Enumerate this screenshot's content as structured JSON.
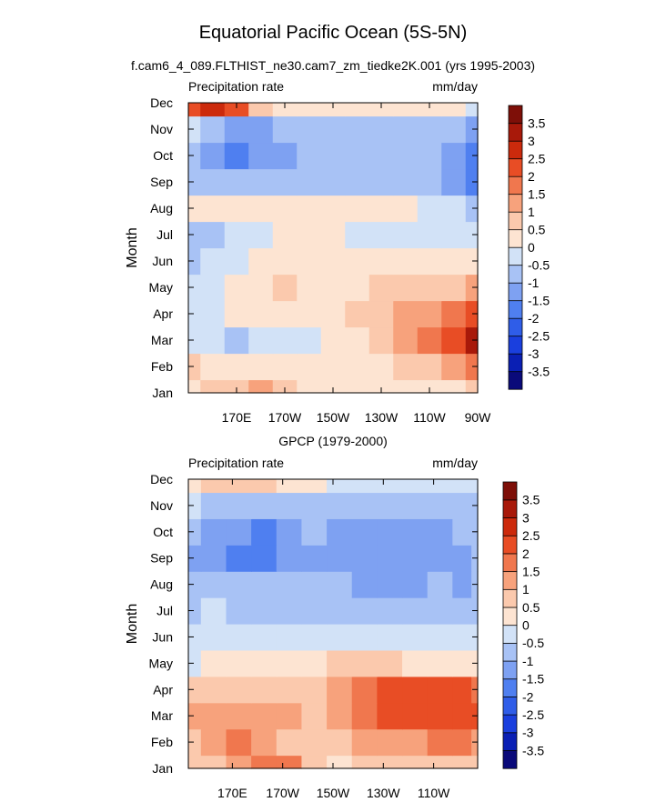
{
  "figure": {
    "title": "Equatorial Pacific Ocean (5S-5N)",
    "subtitle": "f.cam6_4_089.FLTHIST_ne30.cam7_zm_tiedke2K.001 (yrs 1995-2003)"
  },
  "chart_data": [
    {
      "type": "heatmap",
      "title": "",
      "left_label": "Precipitation rate",
      "right_label": "mm/day",
      "ylabel": "Month",
      "xlabel": "",
      "y_ticks": [
        "Jan",
        "Feb",
        "Mar",
        "Apr",
        "May",
        "Jun",
        "Jul",
        "Aug",
        "Sep",
        "Oct",
        "Nov",
        "Dec"
      ],
      "x_ticks": [
        "170E",
        "170W",
        "150W",
        "130W",
        "110W",
        "90W"
      ],
      "x_tick_lon": [
        170,
        190,
        210,
        230,
        250,
        270
      ],
      "xlim_lon": [
        150,
        270
      ],
      "grid_lon": [
        150,
        160,
        170,
        180,
        190,
        200,
        210,
        220,
        230,
        240,
        250,
        260,
        270
      ],
      "months": [
        "Jan",
        "Feb",
        "Mar",
        "Apr",
        "May",
        "Jun",
        "Jul",
        "Aug",
        "Sep",
        "Oct",
        "Nov",
        "Dec"
      ],
      "values": [
        [
          0.3,
          0.6,
          0.9,
          1.0,
          0.8,
          0.4,
          0.2,
          0.3,
          0.3,
          0.2,
          0.1,
          0.3,
          0.5
        ],
        [
          0.6,
          0.4,
          0.3,
          0.2,
          0.3,
          0.3,
          0.2,
          0.3,
          0.4,
          0.5,
          0.8,
          1.2,
          1.6
        ],
        [
          -0.4,
          -0.3,
          -0.6,
          -0.5,
          -0.4,
          -0.2,
          0.1,
          0.4,
          0.8,
          1.2,
          1.6,
          2.4,
          3.0
        ],
        [
          -0.3,
          -0.2,
          0.1,
          0.3,
          0.3,
          0.3,
          0.4,
          0.6,
          0.8,
          1.0,
          1.3,
          1.8,
          2.2
        ],
        [
          -0.4,
          -0.2,
          0.3,
          0.4,
          0.5,
          0.4,
          0.4,
          0.4,
          0.5,
          0.6,
          0.7,
          0.8,
          1.0
        ],
        [
          -0.6,
          -0.5,
          -0.3,
          0.1,
          0.3,
          0.3,
          0.2,
          0.2,
          0.2,
          0.3,
          0.3,
          0.2,
          0.2
        ],
        [
          -0.8,
          -0.9,
          -0.5,
          -0.3,
          0.2,
          0.2,
          0.1,
          -0.1,
          -0.2,
          -0.2,
          -0.3,
          -0.4,
          -0.5
        ],
        [
          0.3,
          0.4,
          0.2,
          0.2,
          0.3,
          0.4,
          0.3,
          0.3,
          0.2,
          0.1,
          -0.2,
          -0.5,
          -0.9
        ],
        [
          -0.6,
          -0.7,
          -0.8,
          -0.8,
          -0.7,
          -0.6,
          -0.6,
          -0.6,
          -0.6,
          -0.7,
          -0.9,
          -1.2,
          -1.6
        ],
        [
          -0.7,
          -1.2,
          -1.6,
          -1.5,
          -1.2,
          -0.9,
          -0.8,
          -0.7,
          -0.7,
          -0.8,
          -1.0,
          -1.2,
          -1.6
        ],
        [
          -0.5,
          -0.8,
          -1.2,
          -1.1,
          -0.9,
          -0.7,
          -0.6,
          -0.6,
          -0.6,
          -0.7,
          -0.9,
          -1.0,
          -1.2
        ],
        [
          2.2,
          2.6,
          2.0,
          0.9,
          0.4,
          0.2,
          0.1,
          0.2,
          0.3,
          0.2,
          0.1,
          0.0,
          -0.1
        ]
      ]
    },
    {
      "type": "heatmap",
      "title": "GPCP (1979-2000)",
      "left_label": "Precipitation rate",
      "right_label": "mm/day",
      "ylabel": "Month",
      "xlabel": "",
      "y_ticks": [
        "Jan",
        "Feb",
        "Mar",
        "Apr",
        "May",
        "Jun",
        "Jul",
        "Aug",
        "Sep",
        "Oct",
        "Nov",
        "Dec"
      ],
      "x_ticks": [
        "170E",
        "170W",
        "150W",
        "130W",
        "110W"
      ],
      "x_tick_lon": [
        170,
        190,
        210,
        230,
        250
      ],
      "xlim_lon": [
        152.5,
        267.5
      ],
      "grid_lon": [
        152.5,
        162.5,
        172.5,
        182.5,
        192.5,
        202.5,
        212.5,
        222.5,
        232.5,
        242.5,
        252.5,
        262.5,
        267.5
      ],
      "months": [
        "Jan",
        "Feb",
        "Mar",
        "Apr",
        "May",
        "Jun",
        "Jul",
        "Aug",
        "Sep",
        "Oct",
        "Nov",
        "Dec"
      ],
      "values": [
        [
          0.6,
          0.9,
          1.4,
          1.8,
          1.5,
          0.6,
          0.4,
          0.6,
          0.8,
          0.8,
          0.8,
          0.8,
          0.8
        ],
        [
          0.8,
          1.2,
          1.5,
          1.3,
          0.9,
          0.6,
          0.7,
          1.0,
          1.2,
          1.4,
          1.5,
          1.5,
          1.4
        ],
        [
          1.1,
          1.3,
          1.1,
          1.2,
          1.0,
          0.9,
          1.2,
          1.6,
          2.0,
          2.2,
          2.0,
          2.2,
          2.0
        ],
        [
          0.8,
          0.6,
          0.6,
          0.7,
          0.6,
          0.7,
          1.2,
          1.8,
          2.2,
          2.1,
          2.0,
          2.1,
          1.8
        ],
        [
          -0.3,
          0.2,
          0.4,
          0.3,
          0.2,
          0.4,
          0.6,
          0.6,
          0.5,
          0.4,
          0.3,
          0.3,
          0.3
        ],
        [
          -0.4,
          -0.2,
          -0.3,
          -0.4,
          -0.4,
          -0.3,
          -0.2,
          -0.3,
          -0.4,
          -0.5,
          -0.5,
          -0.5,
          -0.5
        ],
        [
          -0.6,
          -0.4,
          -0.8,
          -0.8,
          -0.8,
          -0.7,
          -0.7,
          -0.7,
          -0.8,
          -0.8,
          -0.7,
          -0.7,
          -0.8
        ],
        [
          -0.7,
          -0.8,
          -1.0,
          -1.0,
          -1.0,
          -1.0,
          -1.0,
          -1.1,
          -1.2,
          -1.2,
          -1.0,
          -1.1,
          -1.0
        ],
        [
          -1.2,
          -1.4,
          -1.6,
          -1.8,
          -1.5,
          -1.1,
          -1.2,
          -1.4,
          -1.4,
          -1.4,
          -1.2,
          -1.2,
          -1.0
        ],
        [
          -1.0,
          -1.2,
          -1.5,
          -1.6,
          -1.3,
          -1.0,
          -1.1,
          -1.3,
          -1.3,
          -1.3,
          -1.1,
          -1.0,
          -1.0
        ],
        [
          -0.5,
          -0.6,
          -0.7,
          -0.7,
          -0.6,
          -0.6,
          -0.6,
          -0.6,
          -0.6,
          -0.6,
          -0.6,
          -0.6,
          -0.7
        ],
        [
          0.2,
          0.5,
          0.8,
          0.5,
          0.2,
          0.0,
          -0.2,
          -0.2,
          -0.3,
          -0.3,
          -0.3,
          -0.3,
          -0.3
        ]
      ]
    }
  ],
  "colorbar": {
    "levels": [
      -3.5,
      -3,
      -2.5,
      -2,
      -1.5,
      -1,
      -0.5,
      0,
      0.5,
      1,
      1.5,
      2,
      2.5,
      3,
      3.5
    ],
    "labels": [
      "-3.5",
      "-3",
      "-2.5",
      "-2",
      "-1.5",
      "-1",
      "-0.5",
      "0",
      "0.5",
      "1",
      "1.5",
      "2",
      "2.5",
      "3",
      "3.5"
    ],
    "colors": [
      "#0a0a7a",
      "#0a1fb4",
      "#1a3fde",
      "#2f5de8",
      "#4f7ff0",
      "#7ea1f2",
      "#a8c2f5",
      "#d2e2f7",
      "#fde4d2",
      "#fbc9ad",
      "#f7a27c",
      "#f0774e",
      "#e84d25",
      "#cc2a0c",
      "#a8190a",
      "#7e0f08"
    ]
  }
}
